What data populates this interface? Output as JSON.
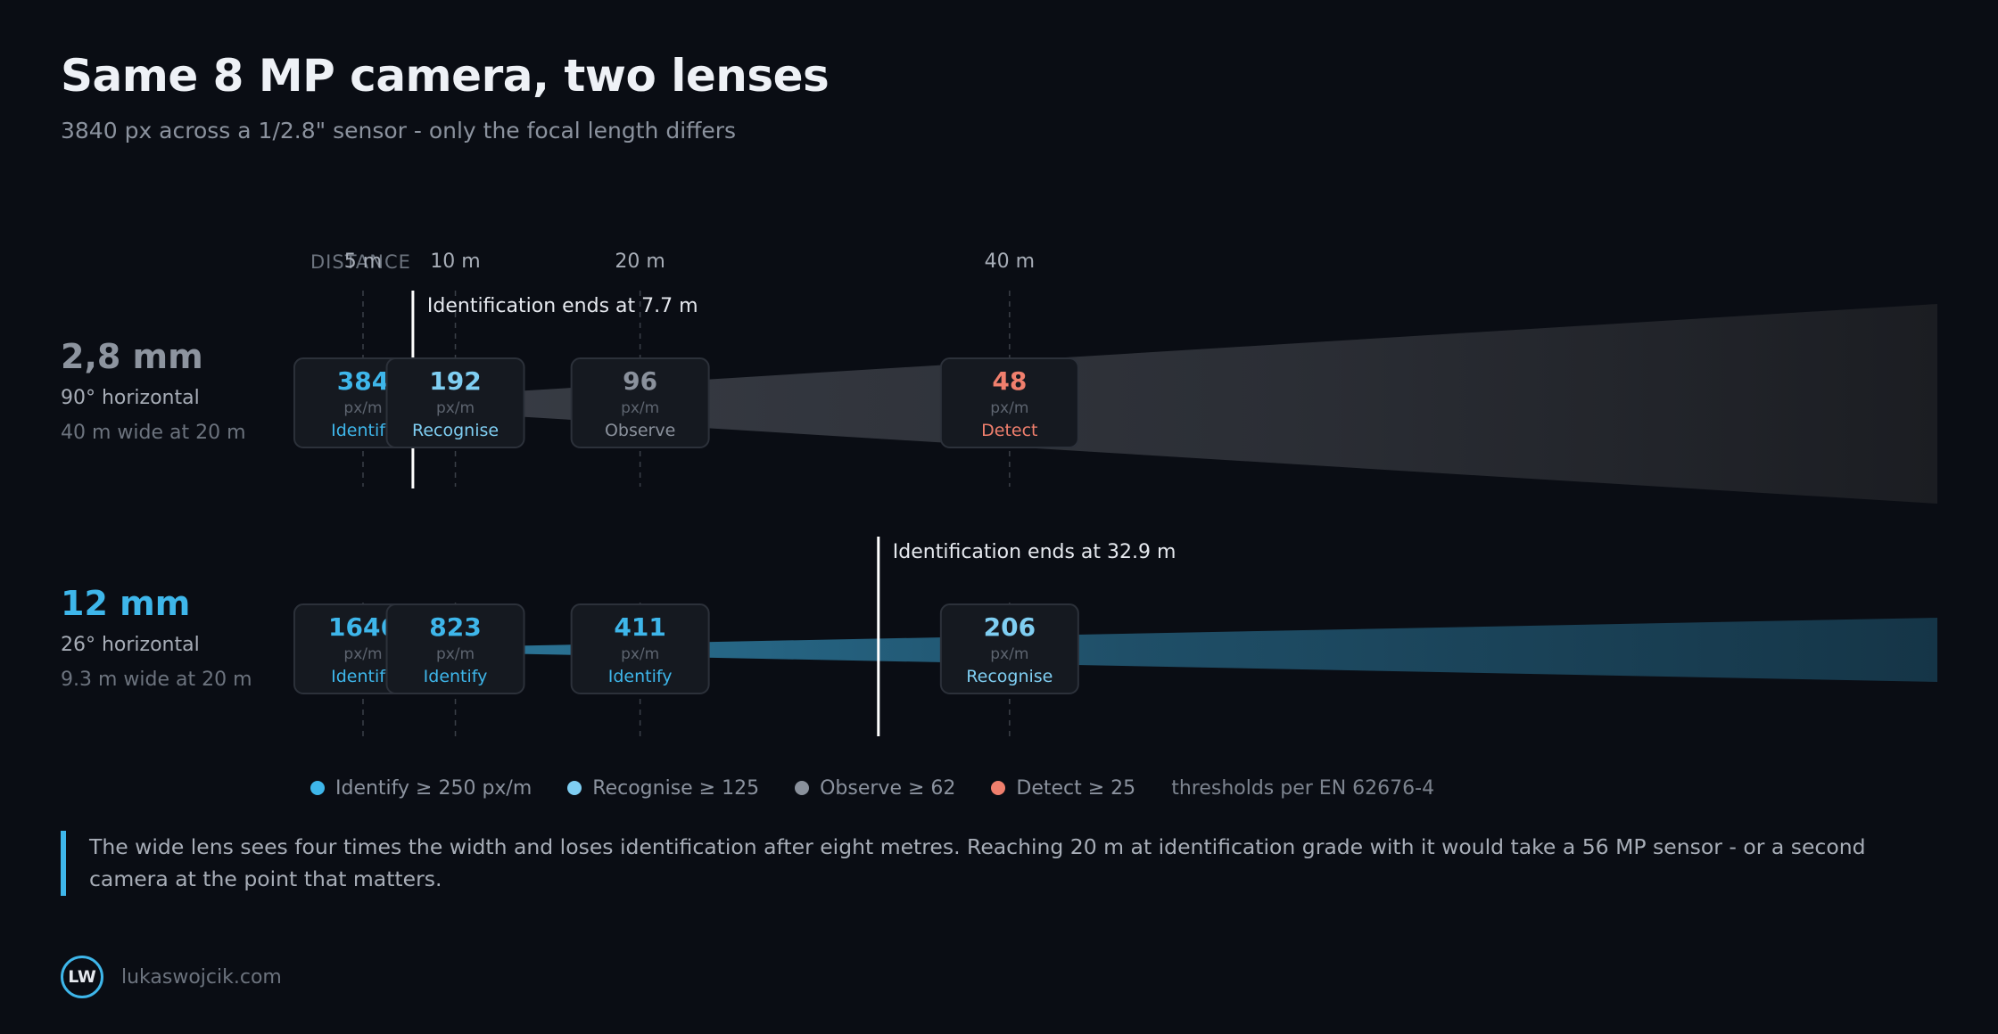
{
  "title": "Same 8 MP camera, two lenses",
  "subtitle": "3840 px across a 1/2.8\" sensor - only the focal length differs",
  "colors": {
    "identify": "#3eb6ea",
    "recognise": "#7fcef2",
    "observe": "#8a919c",
    "detect": "#f07f6d",
    "wide_beam": "#2a2d34",
    "tele_beam": "#1d4a62",
    "marker": "#ffffff"
  },
  "chart_data": {
    "type": "diagram",
    "axis_label": "DISTANCE",
    "distance_ticks": [
      {
        "label": "5 m",
        "value": 5
      },
      {
        "label": "10 m",
        "value": 10
      },
      {
        "label": "20 m",
        "value": 20
      },
      {
        "label": "40 m",
        "value": 40
      }
    ],
    "unit": "px/m",
    "lenses": [
      {
        "name": "2,8 mm",
        "fov": "90° horizontal",
        "width": "40 m wide at 20 m",
        "beam": "wide",
        "identification_end_m": 7.7,
        "marker_label": "Identification ends at 7.7 m",
        "readings": [
          {
            "distance": 5,
            "value": "384",
            "grade": "Identify",
            "level": "identify"
          },
          {
            "distance": 10,
            "value": "192",
            "grade": "Recognise",
            "level": "recognise"
          },
          {
            "distance": 20,
            "value": "96",
            "grade": "Observe",
            "level": "observe"
          },
          {
            "distance": 40,
            "value": "48",
            "grade": "Detect",
            "level": "detect"
          }
        ]
      },
      {
        "name": "12 mm",
        "fov": "26° horizontal",
        "width": "9.3 m wide at 20 m",
        "beam": "tele",
        "identification_end_m": 32.9,
        "marker_label": "Identification ends at 32.9 m",
        "readings": [
          {
            "distance": 5,
            "value": "1646",
            "grade": "Identify",
            "level": "identify"
          },
          {
            "distance": 10,
            "value": "823",
            "grade": "Identify",
            "level": "identify"
          },
          {
            "distance": 20,
            "value": "411",
            "grade": "Identify",
            "level": "identify"
          },
          {
            "distance": 40,
            "value": "206",
            "grade": "Recognise",
            "level": "recognise"
          }
        ]
      }
    ]
  },
  "legend": {
    "items": [
      {
        "label": "Identify ≥ 250 px/m",
        "level": "identify"
      },
      {
        "label": "Recognise ≥ 125",
        "level": "recognise"
      },
      {
        "label": "Observe ≥ 62",
        "level": "observe"
      },
      {
        "label": "Detect ≥ 25",
        "level": "detect"
      }
    ],
    "note": "thresholds per EN 62676-4"
  },
  "callout": "The wide lens sees four times the width and loses identification after eight metres. Reaching 20 m at identification grade with it would take a 56 MP sensor - or a second camera at the point that matters.",
  "footer": {
    "logo": "LW",
    "site": "lukaswojcik.com"
  }
}
